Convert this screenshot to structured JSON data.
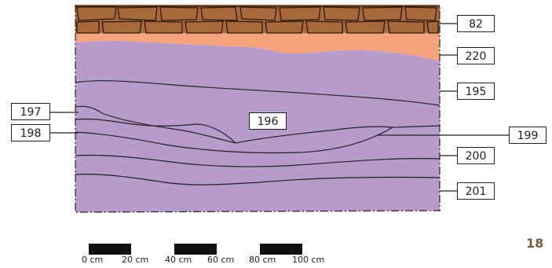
{
  "layers": [
    {
      "id": "82",
      "name": "layer-82"
    },
    {
      "id": "220",
      "name": "layer-220"
    },
    {
      "id": "195",
      "name": "layer-195"
    },
    {
      "id": "196",
      "name": "layer-196"
    },
    {
      "id": "197",
      "name": "layer-197"
    },
    {
      "id": "198",
      "name": "layer-198"
    },
    {
      "id": "199",
      "name": "layer-199"
    },
    {
      "id": "200",
      "name": "layer-200"
    },
    {
      "id": "201",
      "name": "layer-201"
    }
  ],
  "colors": {
    "brick": "#a8693a",
    "brick_stroke": "#2a1a10",
    "orange": "#f4a37c",
    "purple": "#b69bcb",
    "line": "#222222",
    "page_number": "#7a5a44"
  },
  "scale": {
    "labels": [
      "0 cm",
      "20 cm",
      "40 cm",
      "60 cm",
      "80 cm",
      "100 cm"
    ]
  },
  "page_number": "18"
}
